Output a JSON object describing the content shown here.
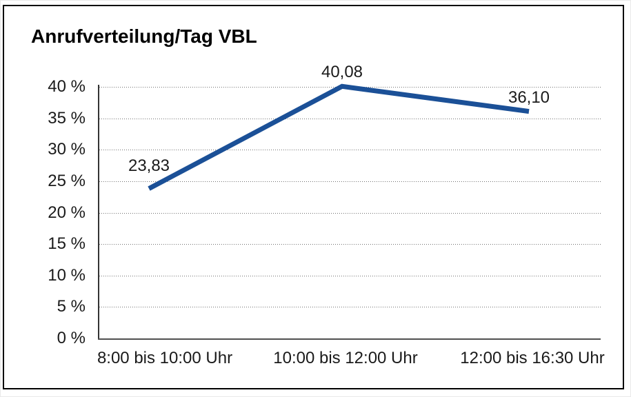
{
  "chart_data": {
    "type": "line",
    "title": "Anrufverteilung/Tag VBL",
    "categories": [
      "8:00 bis 10:00 Uhr",
      "10:00 bis 12:00 Uhr",
      "12:00 bis 16:30 Uhr"
    ],
    "values": [
      23.83,
      40.08,
      36.1
    ],
    "data_labels": [
      "23,83",
      "40,08",
      "36,10"
    ],
    "xlabel": "",
    "ylabel": "",
    "ylim": [
      0,
      40
    ],
    "y_step": 5,
    "y_tick_labels": [
      "0 %",
      "5 %",
      "10 %",
      "15 %",
      "20 %",
      "25 %",
      "30 %",
      "35 %",
      "40 %"
    ],
    "grid": "horizontal-dotted",
    "legend_position": "none",
    "line_color": "#1b5097",
    "grid_color": "#6f6f6f",
    "axis_color": "#333333",
    "text_color": "#1a1a1a",
    "frame_color": "#000000"
  }
}
